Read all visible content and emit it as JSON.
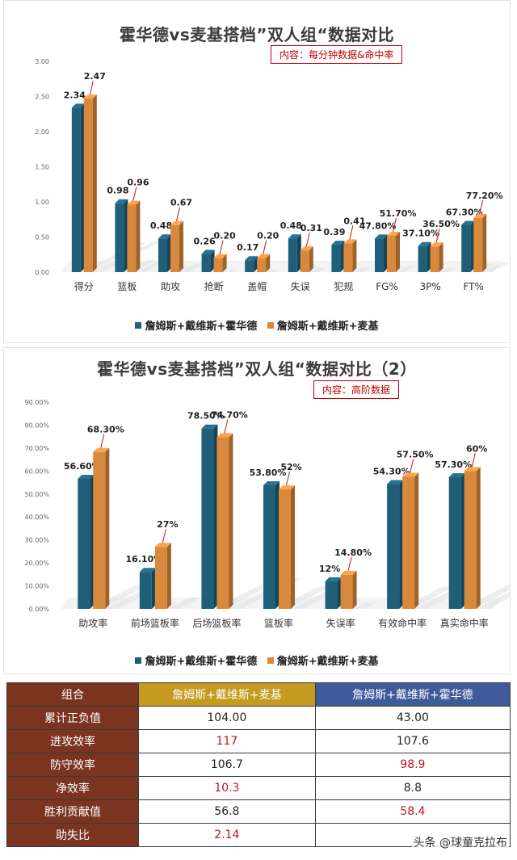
{
  "colors": {
    "teal": "#1f5f7a",
    "orange": "#d8893c",
    "red": "#c0161b"
  },
  "legend": {
    "series_a": "詹姆斯+戴维斯+霍华德",
    "series_b": "詹姆斯+戴维斯+麦基"
  },
  "chart_data": [
    {
      "type": "bar",
      "title": "霍华德vs麦基搭档”双人组“数据对比",
      "subtitle": "内容：每分钟数据&命中率",
      "categories": [
        "得分",
        "篮板",
        "助攻",
        "抢断",
        "盖帽",
        "失误",
        "犯规",
        "FG%",
        "3P%",
        "FT%"
      ],
      "series": [
        {
          "name": "詹姆斯+戴维斯+霍华德",
          "values": [
            2.34,
            0.98,
            0.48,
            0.26,
            0.17,
            0.48,
            0.39,
            0.478,
            0.371,
            0.673
          ]
        },
        {
          "name": "詹姆斯+戴维斯+麦基",
          "values": [
            2.47,
            0.96,
            0.67,
            0.2,
            0.2,
            0.31,
            0.41,
            0.517,
            0.365,
            0.772
          ]
        }
      ],
      "data_labels": [
        [
          "2.34",
          "0.98",
          "0.48",
          "0.26",
          "0.17",
          "0.48",
          "0.39",
          "47.80%",
          "37.10%",
          "67.30%"
        ],
        [
          "2.47",
          "0.96",
          "0.67",
          "0.20",
          "0.20",
          "0.31",
          "0.41",
          "51.70%",
          "36.50%",
          "77.20%"
        ]
      ],
      "ylim": [
        0,
        3
      ],
      "yticks": [
        "0.00",
        "0.50",
        "1.00",
        "1.50",
        "2.00",
        "2.50",
        "3.00"
      ],
      "legend": "bottom"
    },
    {
      "type": "bar",
      "title": "霍华德vs麦基搭档”双人组“数据对比（2）",
      "subtitle": "内容：高阶数据",
      "categories": [
        "助攻率",
        "前场篮板率",
        "后场篮板率",
        "篮板率",
        "失误率",
        "有效命中率",
        "真实命中率"
      ],
      "series": [
        {
          "name": "詹姆斯+戴维斯+霍华德",
          "values": [
            56.6,
            16.1,
            78.5,
            53.8,
            12,
            54.3,
            57.3
          ]
        },
        {
          "name": "詹姆斯+戴维斯+麦基",
          "values": [
            68.3,
            27,
            74.7,
            52,
            14.8,
            57.5,
            60
          ]
        }
      ],
      "data_labels": [
        [
          "56.60%",
          "16.10%",
          "78.50%",
          "53.80%",
          "12%",
          "54.30%",
          "57.30%"
        ],
        [
          "68.30%",
          "27%",
          "74.70%",
          "52%",
          "14.80%",
          "57.50%",
          "60%"
        ]
      ],
      "ylim": [
        0,
        90
      ],
      "yticks": [
        "0.00%",
        "10.00%",
        "20.00%",
        "30.00%",
        "40.00%",
        "50.00%",
        "60.00%",
        "70.00%",
        "80.00%",
        "90.00%"
      ],
      "legend": "bottom"
    }
  ],
  "table": {
    "headers": [
      "组合",
      "詹姆斯+戴维斯+麦基",
      "詹姆斯+戴维斯+霍华德"
    ],
    "rows": [
      {
        "label": "累计正负值",
        "a": "104.00",
        "b": "43.00",
        "highlight": ""
      },
      {
        "label": "进攻效率",
        "a": "117",
        "b": "107.6",
        "highlight": "a"
      },
      {
        "label": "防守效率",
        "a": "106.7",
        "b": "98.9",
        "highlight": "b"
      },
      {
        "label": "净效率",
        "a": "10.3",
        "b": "8.8",
        "highlight": "a"
      },
      {
        "label": "胜利贡献值",
        "a": "56.8",
        "b": "58.4",
        "highlight": "b"
      },
      {
        "label": "助失比",
        "a": "2.14",
        "b": "",
        "highlight": "a"
      }
    ]
  },
  "watermark": "头条 @球童克拉布"
}
